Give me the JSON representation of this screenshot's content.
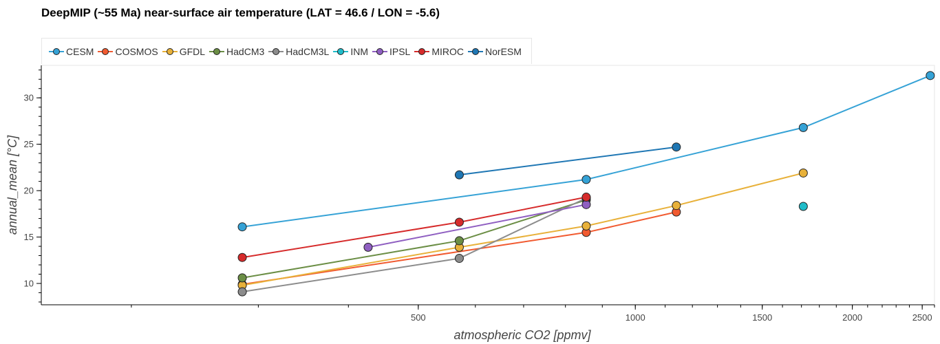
{
  "chart_data": {
    "type": "line",
    "title": "DeepMIP (~55 Ma) near-surface air temperature (LAT = 46.6 / LON = -5.6)",
    "xlabel": "atmospheric CO2 [ppmv]",
    "ylabel": "annual_mean [°C]",
    "xscale": "log",
    "xlim": [
      150,
      2600
    ],
    "ylim": [
      7.7,
      33.5
    ],
    "xticks": [
      500,
      1000,
      1500,
      2000,
      2500
    ],
    "yticks": [
      10,
      15,
      20,
      25,
      30
    ],
    "legend_placement": "top-left",
    "grid": false,
    "series": [
      {
        "name": "CESM",
        "color": "#35a2d6",
        "x": [
          285,
          855,
          1710,
          2565
        ],
        "y": [
          16.1,
          21.2,
          26.8,
          32.4
        ]
      },
      {
        "name": "COSMOS",
        "color": "#f15a30",
        "x": [
          285,
          855,
          1140
        ],
        "y": [
          9.9,
          15.5,
          17.7
        ]
      },
      {
        "name": "GFDL",
        "color": "#e8b13a",
        "x": [
          285,
          570,
          855,
          1140,
          1710
        ],
        "y": [
          9.8,
          13.9,
          16.2,
          18.4,
          21.9
        ]
      },
      {
        "name": "HadCM3",
        "color": "#6b8e45",
        "x": [
          285,
          570,
          855
        ],
        "y": [
          10.6,
          14.6,
          19.0
        ]
      },
      {
        "name": "HadCM3L",
        "color": "#8c8c8c",
        "x": [
          285,
          570,
          855
        ],
        "y": [
          9.1,
          12.7,
          19.2
        ]
      },
      {
        "name": "INM",
        "color": "#20bcc9",
        "x": [
          1710
        ],
        "y": [
          18.3
        ]
      },
      {
        "name": "IPSL",
        "color": "#8f5fc1",
        "x": [
          426,
          855
        ],
        "y": [
          13.9,
          18.5
        ]
      },
      {
        "name": "MIROC",
        "color": "#d62b2b",
        "x": [
          285,
          570,
          855
        ],
        "y": [
          12.8,
          16.6,
          19.3
        ]
      },
      {
        "name": "NorESM",
        "color": "#1f77b4",
        "x": [
          570,
          1140
        ],
        "y": [
          21.7,
          24.7
        ]
      }
    ]
  }
}
